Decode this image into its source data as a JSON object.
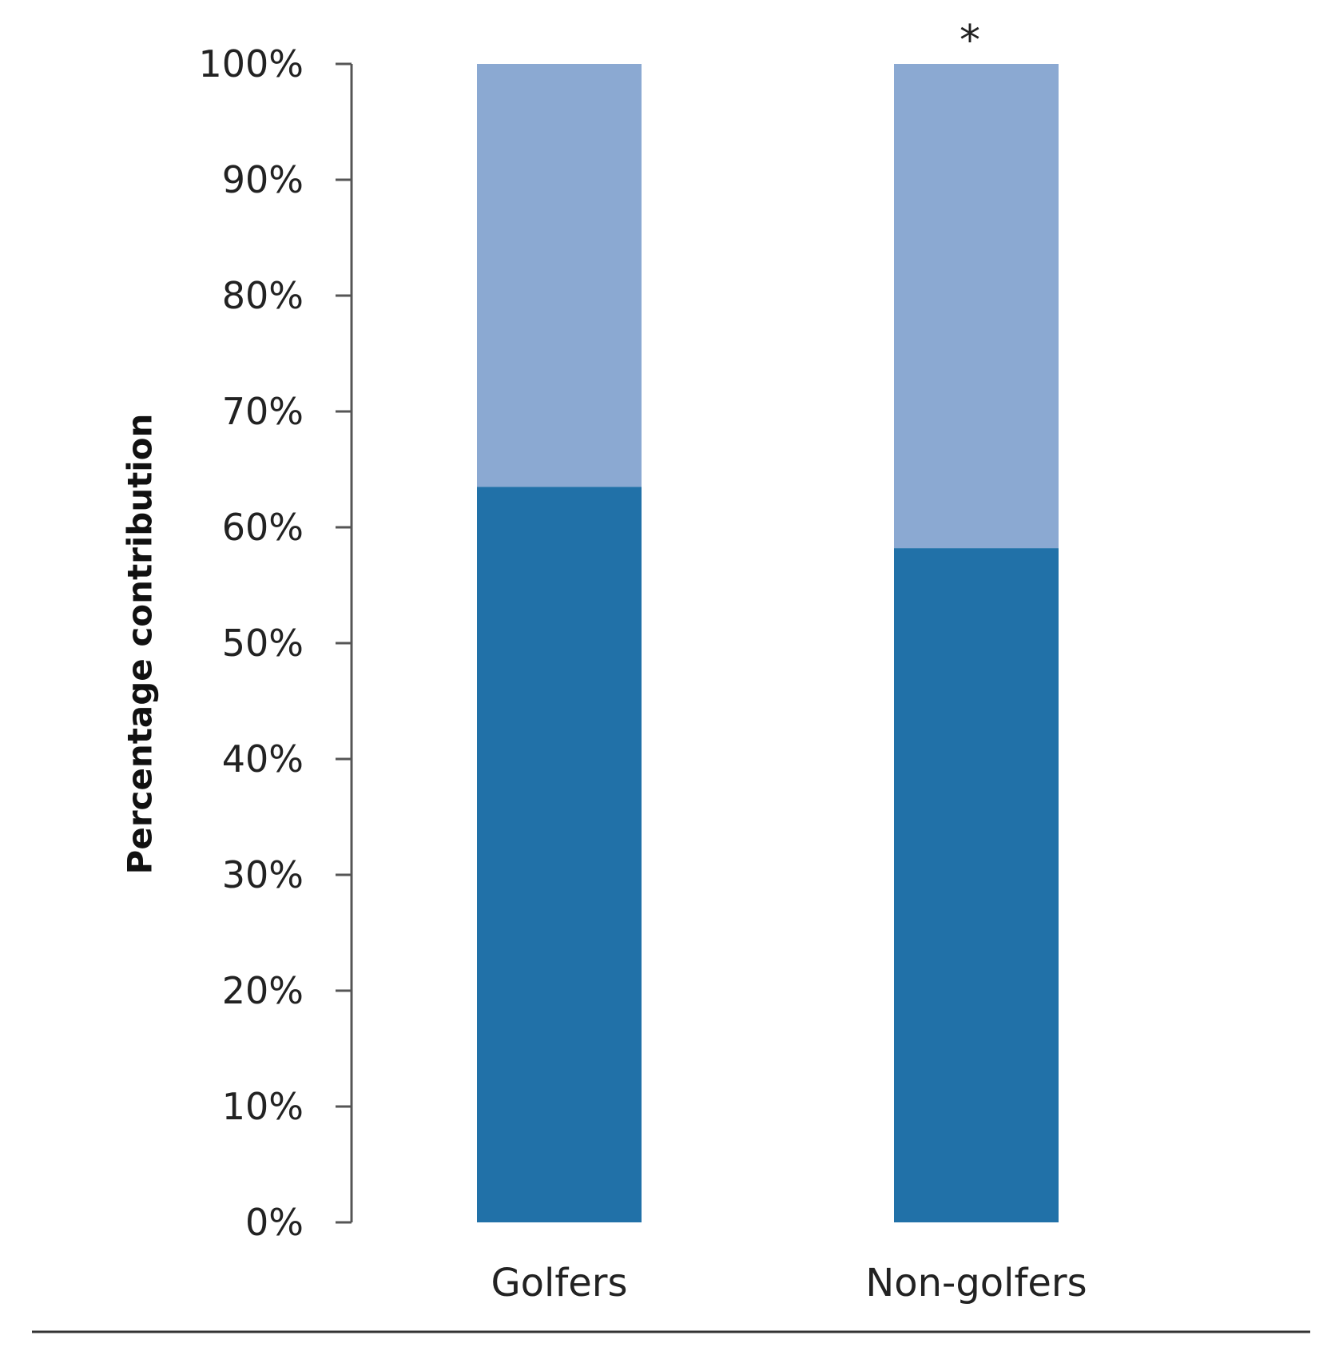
{
  "chart_data": {
    "type": "bar",
    "stacked": true,
    "categories": [
      "Golfers",
      "Non-golfers"
    ],
    "series": [
      {
        "values": [
          63.5,
          58.2
        ],
        "color": "#2171a8"
      },
      {
        "values": [
          36.5,
          41.8
        ],
        "color": "#8ba9d2"
      }
    ],
    "ylabel": "Percentage contribution",
    "xlabel": "",
    "ylim": [
      0,
      100
    ],
    "yticks": [
      0,
      10,
      20,
      30,
      40,
      50,
      60,
      70,
      80,
      90,
      100
    ],
    "ytick_labels": [
      "0%",
      "10%",
      "20%",
      "30%",
      "40%",
      "50%",
      "60%",
      "70%",
      "80%",
      "90%",
      "100%"
    ],
    "annotations": [
      {
        "category": "Non-golfers",
        "text": "*",
        "position": "above-bar"
      }
    ],
    "grid": false,
    "legend": "none"
  }
}
